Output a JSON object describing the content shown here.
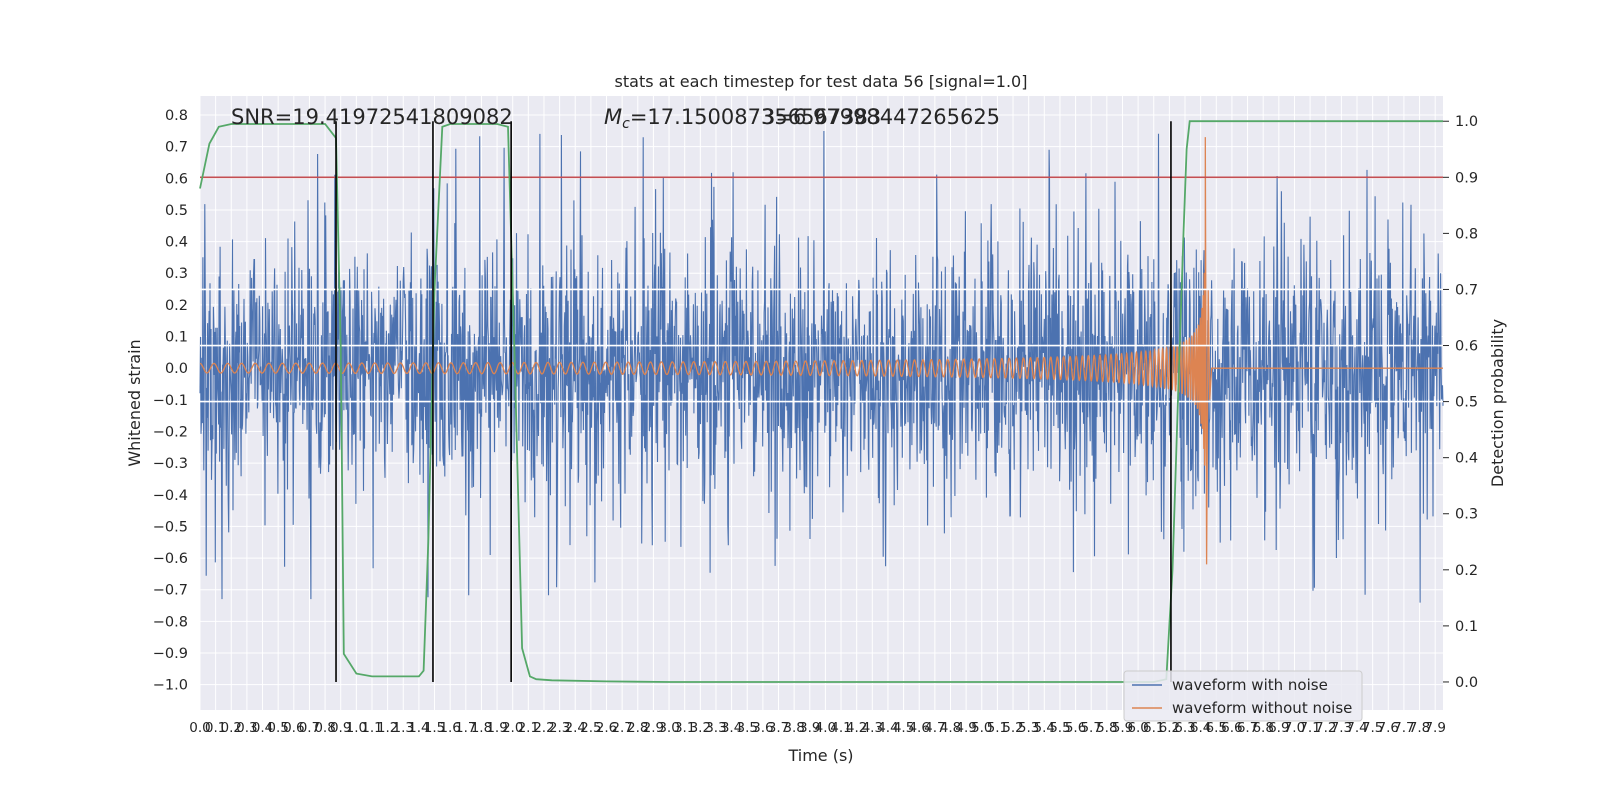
{
  "chart_data": {
    "type": "line",
    "title": "stats at each timestep for test data 56 [signal=1.0]",
    "xlabel": "Time (s)",
    "ylabel_left": "Whitened strain",
    "ylabel_right": "Detection probability",
    "xlim": [
      0.0,
      7.95
    ],
    "ylim_left": [
      -1.08,
      0.86
    ],
    "ylim_right": [
      -0.05,
      1.045
    ],
    "x_tick_step": 0.1,
    "x_tick_last": 7.9,
    "y_ticks_left": [
      0.8,
      0.7,
      0.6,
      0.5,
      0.4,
      0.3,
      0.2,
      0.1,
      0.0,
      -0.1,
      -0.2,
      -0.3,
      -0.4,
      -0.5,
      -0.6,
      -0.7,
      -0.8,
      -0.9,
      -1.0
    ],
    "y_ticks_right": [
      1.0,
      0.9,
      0.8,
      0.7,
      0.6,
      0.5,
      0.4,
      0.3,
      0.2,
      0.1,
      0.0
    ],
    "y_tick_labels_left": [
      "0.8",
      "0.7",
      "0.6",
      "0.5",
      "0.4",
      "0.3",
      "0.2",
      "0.1",
      "0.0",
      "−0.1",
      "−0.2",
      "−0.3",
      "−0.4",
      "−0.5",
      "−0.6",
      "−0.7",
      "−0.8",
      "−0.9",
      "−1.0"
    ],
    "y_tick_labels_right": [
      "1.0",
      "0.9",
      "0.8",
      "0.7",
      "0.6",
      "0.5",
      "0.4",
      "0.3",
      "0.2",
      "0.1",
      "0.0"
    ],
    "grid": true,
    "legend_position": "lower-right",
    "annotations": {
      "snr": "SNR=19.41972541809082",
      "mc_prefix": "M",
      "mc_sub": "c",
      "mc_value": "=17.150087356567383",
      "overlap": "3=6.97998447265625"
    },
    "series": [
      {
        "name": "waveform with noise",
        "color": "#4c72b0",
        "kind": "noisy strain",
        "amplitude_range": [
          -1.0,
          0.8
        ]
      },
      {
        "name": "waveform without noise",
        "color": "#dd8452",
        "kind": "chirp",
        "merger_time": 6.43,
        "peak": 0.73,
        "trough": -0.62
      },
      {
        "color": "#55a868",
        "kind": "detection probability (right axis)",
        "x": [
          0.0,
          0.06,
          0.12,
          0.2,
          0.3,
          0.5,
          0.7,
          0.8,
          0.87,
          0.9,
          0.92,
          1.0,
          1.1,
          1.3,
          1.4,
          1.43,
          1.46,
          1.5,
          1.55,
          1.6,
          1.7,
          1.9,
          1.97,
          2.01,
          2.06,
          2.11,
          2.15,
          2.25,
          2.6,
          3.0,
          5.0,
          6.1,
          6.18,
          6.22,
          6.26,
          6.29,
          6.31,
          6.33,
          6.36,
          6.4,
          6.6,
          7.95
        ],
        "y": [
          0.88,
          0.96,
          0.99,
          0.995,
          0.995,
          0.995,
          0.995,
          0.995,
          0.97,
          0.6,
          0.05,
          0.015,
          0.01,
          0.01,
          0.01,
          0.02,
          0.25,
          0.7,
          0.99,
          0.995,
          0.995,
          0.995,
          0.99,
          0.6,
          0.06,
          0.01,
          0.005,
          0.003,
          0.001,
          0.0,
          0.0,
          0.0,
          0.005,
          0.2,
          0.55,
          0.8,
          0.95,
          1.0,
          1.0,
          1.0,
          1.0,
          1.0
        ]
      },
      {
        "color": "#c44e52",
        "kind": "threshold (right axis)",
        "value": 0.9
      },
      {
        "color": "#ffffff",
        "kind": "reference levels (right axis)",
        "values": [
          0.7,
          0.6,
          0.5
        ]
      },
      {
        "color": "#000000",
        "kind": "event markers",
        "x": [
          0.87,
          1.49,
          1.99,
          6.21
        ]
      }
    ]
  }
}
